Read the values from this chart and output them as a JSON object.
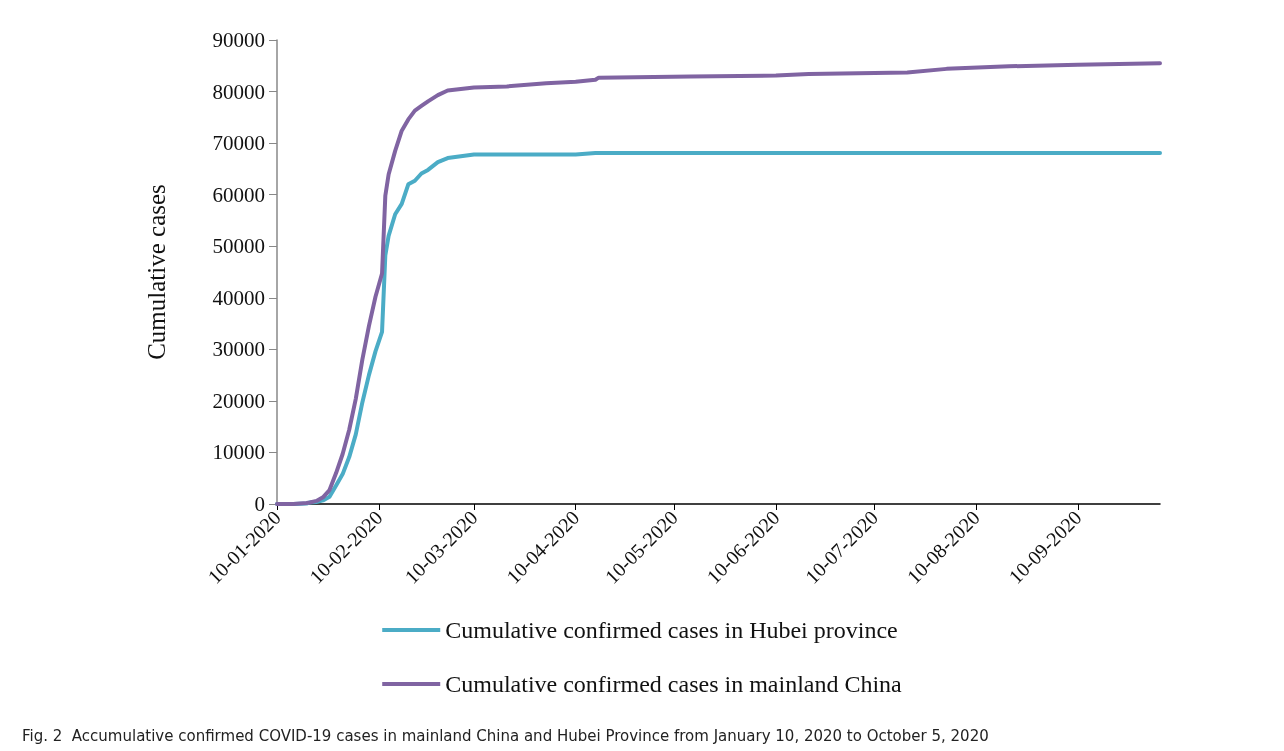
{
  "chart_data": {
    "type": "line",
    "ylabel": "Cumulative cases",
    "x": [
      "2020-01-10",
      "2020-01-15",
      "2020-01-19",
      "2020-01-20",
      "2020-01-22",
      "2020-01-24",
      "2020-01-26",
      "2020-01-28",
      "2020-01-30",
      "2020-02-01",
      "2020-02-03",
      "2020-02-05",
      "2020-02-07",
      "2020-02-09",
      "2020-02-11",
      "2020-02-12",
      "2020-02-13",
      "2020-02-15",
      "2020-02-17",
      "2020-02-19",
      "2020-02-21",
      "2020-02-23",
      "2020-02-25",
      "2020-02-28",
      "2020-03-02",
      "2020-03-10",
      "2020-03-20",
      "2020-04-01",
      "2020-04-10",
      "2020-04-16",
      "2020-04-17",
      "2020-05-15",
      "2020-06-10",
      "2020-06-20",
      "2020-07-20",
      "2020-08-01",
      "2020-08-20",
      "2020-09-10",
      "2020-10-05"
    ],
    "series": [
      {
        "name": "Cumulative confirmed cases in Hubei province",
        "color": "#4bacc6",
        "values": [
          0,
          0,
          100,
          300,
          400,
          700,
          1400,
          3600,
          5800,
          9100,
          13500,
          19700,
          25000,
          29600,
          33400,
          48200,
          52000,
          56200,
          58200,
          62000,
          62700,
          64100,
          64800,
          66300,
          67100,
          67800,
          67800,
          67800,
          67800,
          68100,
          68100,
          68100,
          68100,
          68100,
          68100,
          68100,
          68100,
          68100,
          68100
        ]
      },
      {
        "name": "Cumulative confirmed cases in mainland China",
        "color": "#8064a2",
        "values": [
          0,
          0,
          200,
          300,
          600,
          1300,
          2700,
          6000,
          9700,
          14400,
          20400,
          28000,
          34500,
          40200,
          44700,
          59800,
          63900,
          68500,
          72400,
          74600,
          76300,
          77200,
          78100,
          79300,
          80200,
          80800,
          81000,
          81600,
          81900,
          82300,
          82700,
          82900,
          83100,
          83400,
          83700,
          84400,
          84900,
          85200,
          85500
        ]
      }
    ],
    "xlim": [
      "2020-01-10",
      "2020-10-05"
    ],
    "xticks": [
      {
        "value": "2020-01-10",
        "label": "10-01-2020"
      },
      {
        "value": "2020-02-10",
        "label": "10-02-2020"
      },
      {
        "value": "2020-03-10",
        "label": "10-03-2020"
      },
      {
        "value": "2020-04-10",
        "label": "10-04-2020"
      },
      {
        "value": "2020-05-10",
        "label": "10-05-2020"
      },
      {
        "value": "2020-06-10",
        "label": "10-06-2020"
      },
      {
        "value": "2020-07-10",
        "label": "10-07-2020"
      },
      {
        "value": "2020-08-10",
        "label": "10-08-2020"
      },
      {
        "value": "2020-09-10",
        "label": "10-09-2020"
      }
    ],
    "ylim": [
      0,
      90000
    ],
    "yticks": [
      0,
      10000,
      20000,
      30000,
      40000,
      50000,
      60000,
      70000,
      80000,
      90000
    ],
    "grid": false,
    "legend": "bottom",
    "marker": "none",
    "line_style": "solid",
    "annotations": [
      "Fig. 2  Accumulative confirmed COVID-19 cases in mainland China and Hubei Province from January 10, 2020 to October 5, 2020"
    ]
  }
}
